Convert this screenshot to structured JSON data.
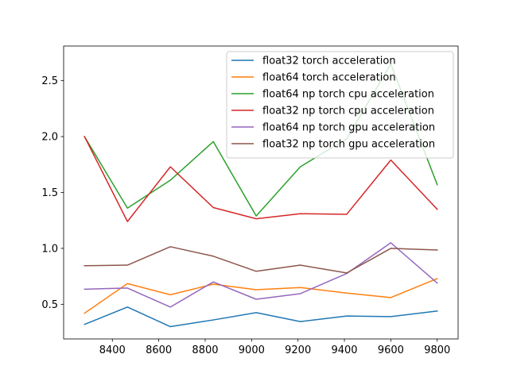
{
  "chart_data": {
    "type": "line",
    "title": "",
    "xlabel": "",
    "ylabel": "",
    "xlim": [
      8190,
      9890
    ],
    "ylim": [
      0.19,
      2.81
    ],
    "xticks": [
      8400,
      8600,
      8800,
      9000,
      9200,
      9400,
      9600,
      9800
    ],
    "yticks": [
      0.5,
      1.0,
      1.5,
      2.0,
      2.5
    ],
    "grid": false,
    "legend_position": "top-right",
    "x": [
      8280,
      8465,
      8650,
      8835,
      9020,
      9210,
      9410,
      9600,
      9800
    ],
    "series": [
      {
        "name": "float32 torch acceleration",
        "color": "#1f77b4",
        "values": [
          0.32,
          0.475,
          0.3,
          0.36,
          0.425,
          0.345,
          0.395,
          0.39,
          0.44
        ]
      },
      {
        "name": "float64 torch acceleration",
        "color": "#ff7f0e",
        "values": [
          0.42,
          0.685,
          0.585,
          0.68,
          0.63,
          0.65,
          0.6,
          0.56,
          0.73
        ]
      },
      {
        "name": "float64 np torch cpu acceleration",
        "color": "#2ca02c",
        "values": [
          2.0,
          1.36,
          1.61,
          1.955,
          1.29,
          1.73,
          1.98,
          2.65,
          1.57
        ]
      },
      {
        "name": "float32 np torch cpu acceleration",
        "color": "#d62728",
        "values": [
          2.0,
          1.24,
          1.73,
          1.365,
          1.265,
          1.31,
          1.305,
          1.79,
          1.35
        ]
      },
      {
        "name": "float64 np torch gpu acceleration",
        "color": "#9467bd",
        "values": [
          0.635,
          0.645,
          0.475,
          0.7,
          0.545,
          0.595,
          0.775,
          1.05,
          0.69
        ]
      },
      {
        "name": "float32 np torch gpu acceleration",
        "color": "#8c564b",
        "values": [
          0.845,
          0.85,
          1.015,
          0.93,
          0.795,
          0.85,
          0.78,
          1.0,
          0.985
        ]
      }
    ]
  }
}
